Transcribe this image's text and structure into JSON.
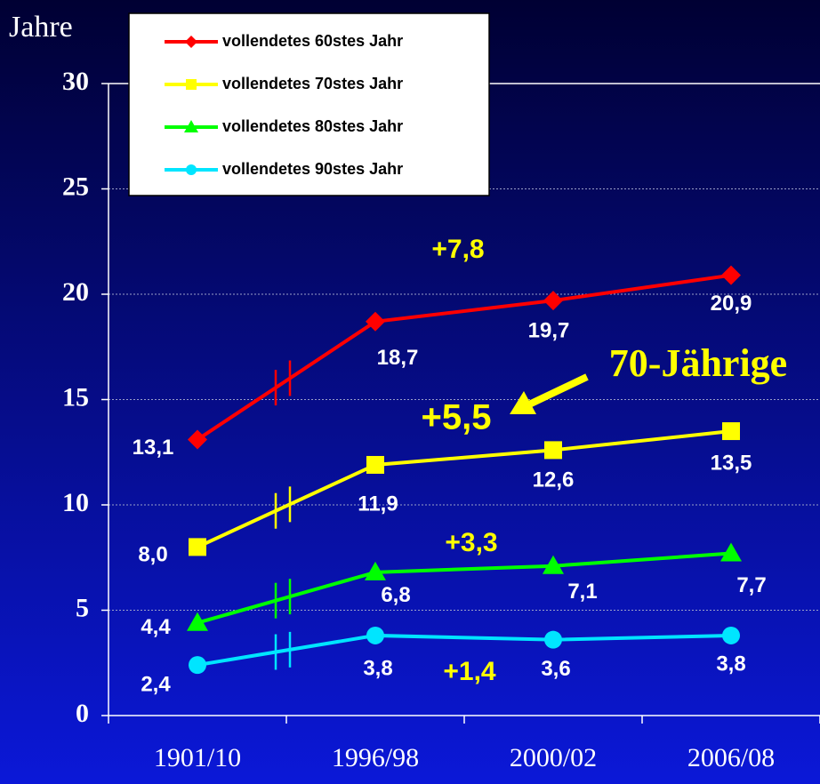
{
  "chart_data": {
    "type": "line",
    "y_axis_label": "Jahre",
    "categories": [
      "1901/10",
      "1996/98",
      "2000/02",
      "2006/08"
    ],
    "series": [
      {
        "name": "vollendetes 60stes Jahr",
        "color": "#ff0000",
        "marker": "diamond",
        "values": [
          13.1,
          18.7,
          19.7,
          20.9
        ],
        "value_labels": [
          "13,1",
          "18,7",
          "19,7",
          "20,9"
        ]
      },
      {
        "name": "vollendetes 70stes Jahr",
        "color": "#ffff00",
        "marker": "square",
        "values": [
          8.0,
          11.9,
          12.6,
          13.5
        ],
        "value_labels": [
          "8,0",
          "11,9",
          "12,6",
          "13,5"
        ]
      },
      {
        "name": "vollendetes 80stes Jahr",
        "color": "#00ff00",
        "marker": "triangle",
        "values": [
          4.4,
          6.8,
          7.1,
          7.7
        ],
        "value_labels": [
          "4,4",
          "6,8",
          "7,1",
          "7,7"
        ]
      },
      {
        "name": "vollendetes 90stes Jahr",
        "color": "#00e5ff",
        "marker": "circle",
        "values": [
          2.4,
          3.8,
          3.6,
          3.8
        ],
        "value_labels": [
          "2,4",
          "3,8",
          "3,6",
          "3,8"
        ]
      }
    ],
    "ylim": [
      0,
      30
    ],
    "yticks": [
      0,
      5,
      10,
      15,
      20,
      25,
      30
    ],
    "grid": true,
    "legend": "top-left",
    "annotations": [
      {
        "text": "+7,8",
        "color": "#ffff00"
      },
      {
        "text": "70-Jährige",
        "color": "#ffff00"
      },
      {
        "text": "+5,5",
        "color": "#ffff00"
      },
      {
        "text": "+3,3",
        "color": "#ffff00"
      },
      {
        "text": "+1,4",
        "color": "#ffff00"
      }
    ]
  }
}
